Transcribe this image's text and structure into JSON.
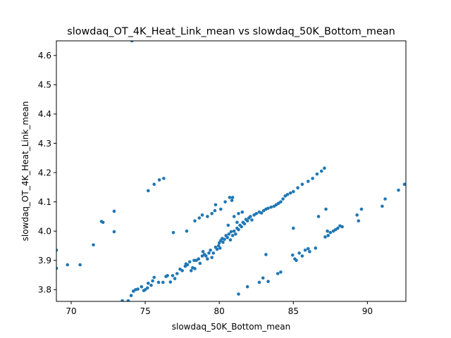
{
  "chart_data": {
    "type": "scatter",
    "title": "slowdaq_OT_4K_Heat_Link_mean vs slowdaq_50K_Bottom_mean",
    "xlabel": "slowdaq_50K_Bottom_mean",
    "ylabel": "slowdaq_OT_4K_Heat_Link_mean",
    "xlim": [
      69.0,
      92.6
    ],
    "ylim": [
      3.76,
      4.65
    ],
    "xticks": [
      70,
      75,
      80,
      85,
      90
    ],
    "yticks": [
      3.8,
      3.9,
      4.0,
      4.1,
      4.2,
      4.3,
      4.4,
      4.5,
      4.6
    ],
    "grid": false,
    "marker_color": "#1f77b4",
    "points": [
      [
        74.1,
        4.65
      ],
      [
        69.0,
        3.935
      ],
      [
        69.0,
        3.873
      ],
      [
        69.75,
        3.885
      ],
      [
        70.6,
        3.885
      ],
      [
        71.5,
        3.953
      ],
      [
        72.05,
        4.033
      ],
      [
        72.15,
        4.03
      ],
      [
        72.9,
        4.068
      ],
      [
        72.9,
        3.998
      ],
      [
        73.45,
        3.762
      ],
      [
        73.85,
        3.762
      ],
      [
        74.05,
        3.78
      ],
      [
        74.2,
        3.795
      ],
      [
        74.35,
        3.8
      ],
      [
        74.5,
        3.802
      ],
      [
        74.75,
        3.81
      ],
      [
        74.9,
        3.797
      ],
      [
        75.0,
        3.8
      ],
      [
        75.15,
        3.806
      ],
      [
        75.2,
        3.822
      ],
      [
        75.4,
        3.815
      ],
      [
        75.5,
        3.83
      ],
      [
        75.6,
        3.842
      ],
      [
        75.9,
        3.825
      ],
      [
        76.2,
        3.825
      ],
      [
        76.4,
        3.845
      ],
      [
        76.5,
        3.848
      ],
      [
        76.7,
        3.826
      ],
      [
        76.85,
        3.848
      ],
      [
        77.0,
        3.838
      ],
      [
        77.15,
        3.855
      ],
      [
        77.35,
        3.87
      ],
      [
        77.5,
        3.865
      ],
      [
        77.7,
        3.88
      ],
      [
        77.75,
        3.888
      ],
      [
        77.85,
        3.885
      ],
      [
        78.0,
        3.895
      ],
      [
        78.1,
        3.865
      ],
      [
        78.2,
        3.875
      ],
      [
        78.3,
        3.9
      ],
      [
        78.35,
        3.872
      ],
      [
        78.45,
        3.9
      ],
      [
        78.6,
        3.905
      ],
      [
        78.7,
        3.89
      ],
      [
        78.85,
        3.915
      ],
      [
        78.9,
        3.93
      ],
      [
        79.0,
        3.92
      ],
      [
        79.1,
        3.915
      ],
      [
        79.2,
        3.905
      ],
      [
        79.3,
        3.925
      ],
      [
        79.4,
        3.935
      ],
      [
        79.5,
        3.91
      ],
      [
        79.6,
        3.925
      ],
      [
        79.75,
        3.945
      ],
      [
        79.85,
        3.938
      ],
      [
        79.95,
        3.95
      ],
      [
        80.0,
        3.96
      ],
      [
        80.05,
        3.942
      ],
      [
        80.1,
        3.968
      ],
      [
        80.2,
        3.975
      ],
      [
        80.25,
        3.962
      ],
      [
        80.35,
        3.972
      ],
      [
        80.45,
        3.985
      ],
      [
        80.55,
        3.978
      ],
      [
        80.65,
        3.99
      ],
      [
        80.75,
        3.97
      ],
      [
        80.8,
        3.998
      ],
      [
        80.9,
        3.985
      ],
      [
        81.0,
        4.0
      ],
      [
        81.1,
        3.99
      ],
      [
        81.2,
        4.01
      ],
      [
        81.3,
        4.005
      ],
      [
        81.4,
        4.02
      ],
      [
        81.5,
        4.015
      ],
      [
        81.6,
        4.03
      ],
      [
        81.7,
        4.025
      ],
      [
        81.8,
        4.04
      ],
      [
        81.9,
        4.035
      ],
      [
        82.0,
        4.045
      ],
      [
        82.1,
        4.05
      ],
      [
        82.2,
        4.038
      ],
      [
        82.35,
        4.055
      ],
      [
        82.5,
        4.06
      ],
      [
        82.7,
        4.065
      ],
      [
        82.85,
        4.062
      ],
      [
        83.0,
        4.07
      ],
      [
        83.15,
        4.075
      ],
      [
        83.3,
        4.078
      ],
      [
        83.5,
        4.082
      ],
      [
        83.7,
        4.085
      ],
      [
        83.85,
        4.09
      ],
      [
        84.0,
        4.095
      ],
      [
        84.15,
        4.1
      ],
      [
        84.3,
        4.11
      ],
      [
        84.45,
        4.12
      ],
      [
        84.6,
        4.125
      ],
      [
        84.8,
        4.13
      ],
      [
        85.0,
        4.135
      ],
      [
        85.3,
        4.148
      ],
      [
        85.6,
        4.16
      ],
      [
        86.0,
        4.17
      ],
      [
        75.2,
        4.138
      ],
      [
        75.6,
        4.16
      ],
      [
        75.95,
        4.175
      ],
      [
        76.25,
        4.18
      ],
      [
        76.9,
        3.995
      ],
      [
        77.8,
        4.0
      ],
      [
        78.35,
        4.035
      ],
      [
        78.65,
        4.045
      ],
      [
        78.85,
        4.055
      ],
      [
        79.2,
        4.05
      ],
      [
        79.5,
        4.06
      ],
      [
        79.7,
        4.07
      ],
      [
        79.75,
        4.09
      ],
      [
        80.1,
        4.075
      ],
      [
        80.4,
        4.1
      ],
      [
        80.7,
        4.115
      ],
      [
        80.85,
        4.105
      ],
      [
        80.9,
        4.115
      ],
      [
        80.6,
        4.02
      ],
      [
        81.0,
        4.05
      ],
      [
        81.3,
        4.06
      ],
      [
        81.55,
        4.065
      ],
      [
        81.2,
        4.03
      ],
      [
        85.0,
        4.01
      ],
      [
        86.3,
        4.18
      ],
      [
        86.6,
        4.195
      ],
      [
        86.9,
        4.205
      ],
      [
        87.1,
        4.215
      ],
      [
        86.7,
        4.05
      ],
      [
        87.2,
        4.075
      ],
      [
        81.3,
        3.785
      ],
      [
        81.9,
        3.81
      ],
      [
        82.7,
        3.825
      ],
      [
        82.95,
        3.84
      ],
      [
        83.3,
        3.828
      ],
      [
        83.95,
        3.855
      ],
      [
        84.15,
        3.86
      ],
      [
        83.15,
        3.92
      ],
      [
        84.95,
        3.918
      ],
      [
        85.1,
        3.905
      ],
      [
        85.2,
        3.9
      ],
      [
        85.4,
        3.925
      ],
      [
        85.6,
        3.915
      ],
      [
        85.8,
        3.935
      ],
      [
        86.0,
        3.94
      ],
      [
        86.1,
        3.93
      ],
      [
        86.5,
        3.942
      ],
      [
        87.15,
        3.98
      ],
      [
        87.35,
        3.985
      ],
      [
        87.3,
        4.0
      ],
      [
        87.5,
        3.995
      ],
      [
        87.7,
        4.0
      ],
      [
        87.85,
        4.005
      ],
      [
        88.0,
        4.01
      ],
      [
        88.15,
        4.018
      ],
      [
        88.3,
        4.015
      ],
      [
        89.3,
        4.055
      ],
      [
        89.4,
        4.035
      ],
      [
        89.6,
        4.075
      ],
      [
        91.0,
        4.085
      ],
      [
        91.2,
        4.11
      ],
      [
        92.1,
        4.14
      ],
      [
        92.5,
        4.16
      ]
    ]
  }
}
